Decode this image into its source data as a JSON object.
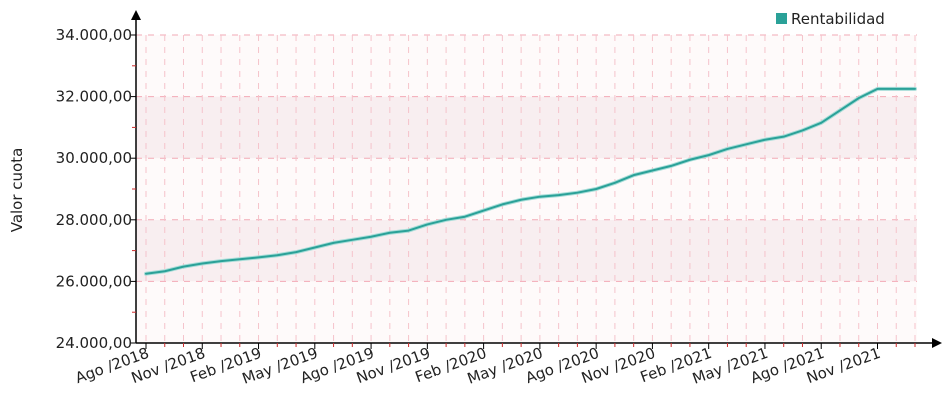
{
  "chart_data": {
    "type": "line",
    "ylabel": "Valor cuota",
    "ylim": [
      24000,
      34000
    ],
    "yticks": [
      24000,
      26000,
      28000,
      30000,
      32000,
      34000
    ],
    "ytick_labels": [
      "24.000,00",
      "26.000,00",
      "28.000,00",
      "30.000,00",
      "32.000,00",
      "34.000,00"
    ],
    "xtick_labels": [
      "Ago /2018",
      "Nov /2018",
      "Feb /2019",
      "May /2019",
      "Ago /2019",
      "Nov /2019",
      "Feb /2020",
      "May /2020",
      "Ago /2020",
      "Nov /2020",
      "Feb /2021",
      "May /2021",
      "Ago /2021",
      "Nov /2021"
    ],
    "grid": true,
    "legend_position": "top-right",
    "x": [
      "2018-08",
      "2018-09",
      "2018-10",
      "2018-11",
      "2018-12",
      "2019-01",
      "2019-02",
      "2019-03",
      "2019-04",
      "2019-05",
      "2019-06",
      "2019-07",
      "2019-08",
      "2019-09",
      "2019-10",
      "2019-11",
      "2019-12",
      "2020-01",
      "2020-02",
      "2020-03",
      "2020-04",
      "2020-05",
      "2020-06",
      "2020-07",
      "2020-08",
      "2020-09",
      "2020-10",
      "2020-11",
      "2020-12",
      "2021-01",
      "2021-02",
      "2021-03",
      "2021-04",
      "2021-05",
      "2021-06",
      "2021-07",
      "2021-08",
      "2021-09",
      "2021-10",
      "2021-11",
      "2021-12",
      "2022-01"
    ],
    "series": [
      {
        "name": "Rentabilidad",
        "color": "#2aa198",
        "values": [
          26250,
          26330,
          26480,
          26580,
          26660,
          26720,
          26780,
          26850,
          26950,
          27100,
          27250,
          27350,
          27450,
          27580,
          27650,
          27850,
          28000,
          28100,
          28300,
          28500,
          28650,
          28750,
          28800,
          28880,
          29000,
          29200,
          29450,
          29600,
          29750,
          29950,
          30100,
          30300,
          30450,
          30600,
          30700,
          30900,
          31150,
          31550,
          31950,
          32250,
          32250,
          32250
        ]
      }
    ]
  }
}
